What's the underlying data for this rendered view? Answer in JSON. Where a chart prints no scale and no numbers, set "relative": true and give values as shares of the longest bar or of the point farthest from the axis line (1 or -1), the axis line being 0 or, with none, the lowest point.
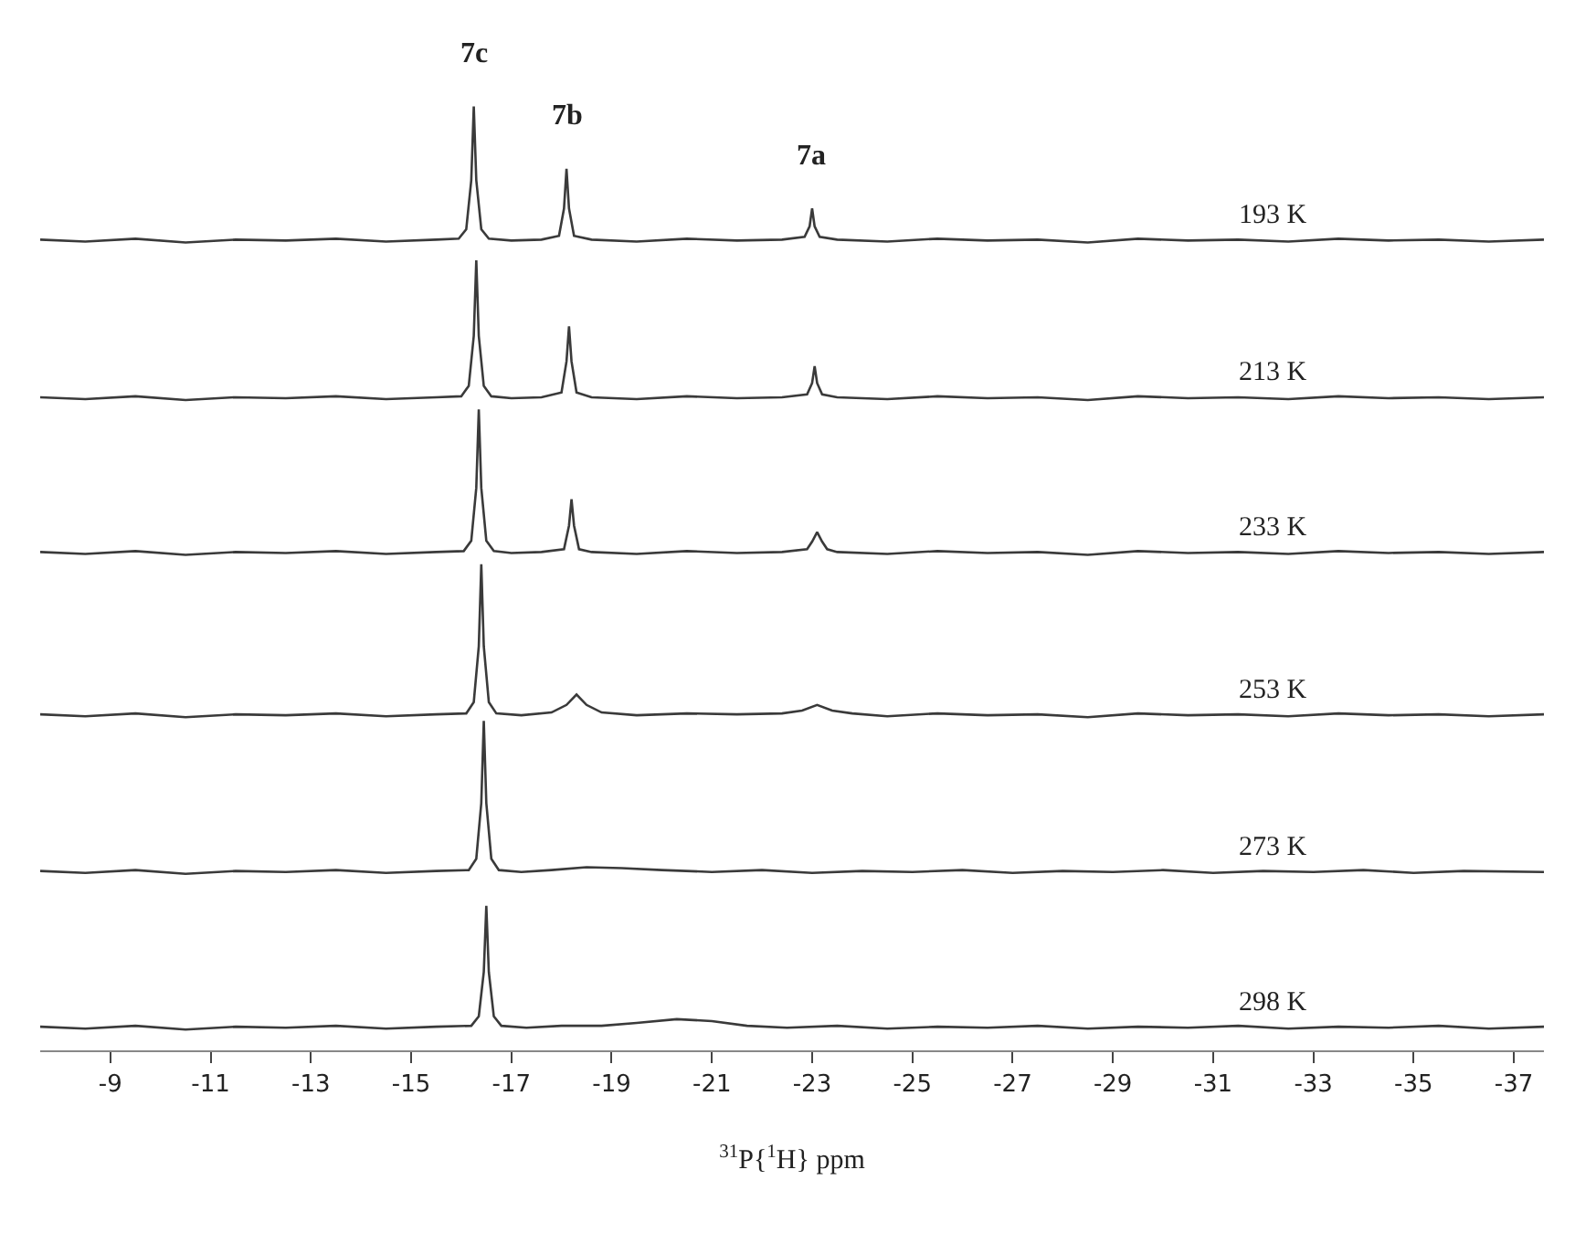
{
  "chart_data": {
    "type": "line",
    "relative": true,
    "xlim": [
      -7.6,
      -37.6
    ],
    "xticks": [
      -9,
      -11,
      -13,
      -15,
      -17,
      -19,
      -21,
      -23,
      -25,
      -27,
      -29,
      -31,
      -33,
      -35,
      -37
    ],
    "xlabel": "$^{31}$P{$^{1}$H} ppm",
    "annotations": [
      "193 K",
      "213 K",
      "233 K",
      "253 K",
      "273 K",
      "298 K",
      {
        "text": "7c",
        "x": -16.25,
        "y": 1.0
      },
      {
        "text": "7b",
        "x": -18.1,
        "y": 0.934
      },
      {
        "text": "7a",
        "x": -23.0,
        "y": 0.892
      }
    ],
    "series": [
      {
        "color": "#3a3a3a",
        "x": [
          -7.6,
          -8.5,
          -9.5,
          -10.5,
          -11.5,
          -12.5,
          -13.5,
          -14.5,
          -15.5,
          -15.95,
          -16.1,
          -16.2,
          -16.25,
          -16.3,
          -16.4,
          -16.55,
          -17.0,
          -17.6,
          -17.95,
          -18.05,
          -18.1,
          -18.15,
          -18.25,
          -18.6,
          -19.5,
          -20.5,
          -21.5,
          -22.4,
          -22.85,
          -22.95,
          -23.0,
          -23.05,
          -23.15,
          -23.5,
          -24.5,
          -25.5,
          -26.5,
          -27.5,
          -28.5,
          -29.5,
          -30.5,
          -31.5,
          -32.5,
          -33.5,
          -34.5,
          -35.5,
          -36.5,
          -37.6
        ],
        "values": [
          0.859,
          0.857,
          0.86,
          0.856,
          0.859,
          0.858,
          0.86,
          0.857,
          0.859,
          0.86,
          0.87,
          0.922,
          1.0,
          0.922,
          0.87,
          0.86,
          0.858,
          0.859,
          0.863,
          0.892,
          0.934,
          0.892,
          0.863,
          0.859,
          0.857,
          0.86,
          0.858,
          0.859,
          0.862,
          0.873,
          0.892,
          0.873,
          0.862,
          0.859,
          0.857,
          0.86,
          0.858,
          0.859,
          0.856,
          0.86,
          0.858,
          0.859,
          0.857,
          0.86,
          0.858,
          0.859,
          0.857,
          0.859
        ]
      },
      {
        "color": "#3a3a3a",
        "x": [
          -7.6,
          -8.5,
          -9.5,
          -10.5,
          -11.5,
          -12.5,
          -13.5,
          -14.5,
          -15.5,
          -16.0,
          -16.15,
          -16.25,
          -16.3,
          -16.35,
          -16.45,
          -16.6,
          -17.0,
          -17.6,
          -18.0,
          -18.1,
          -18.15,
          -18.2,
          -18.3,
          -18.6,
          -19.5,
          -20.5,
          -21.5,
          -22.4,
          -22.9,
          -23.0,
          -23.05,
          -23.1,
          -23.2,
          -23.5,
          -24.5,
          -25.5,
          -26.5,
          -27.5,
          -28.5,
          -29.5,
          -30.5,
          -31.5,
          -32.5,
          -33.5,
          -34.5,
          -35.5,
          -36.5,
          -37.6
        ],
        "values": [
          0.692,
          0.69,
          0.693,
          0.689,
          0.692,
          0.691,
          0.693,
          0.69,
          0.692,
          0.693,
          0.704,
          0.757,
          0.837,
          0.757,
          0.704,
          0.693,
          0.691,
          0.692,
          0.697,
          0.73,
          0.767,
          0.73,
          0.697,
          0.692,
          0.69,
          0.693,
          0.691,
          0.692,
          0.695,
          0.707,
          0.725,
          0.707,
          0.695,
          0.692,
          0.69,
          0.693,
          0.691,
          0.692,
          0.689,
          0.693,
          0.691,
          0.692,
          0.69,
          0.693,
          0.691,
          0.692,
          0.69,
          0.692
        ]
      },
      {
        "color": "#3a3a3a",
        "x": [
          -7.6,
          -8.5,
          -9.5,
          -10.5,
          -11.5,
          -12.5,
          -13.5,
          -14.5,
          -15.5,
          -16.05,
          -16.2,
          -16.3,
          -16.35,
          -16.4,
          -16.5,
          -16.65,
          -17.0,
          -17.6,
          -18.05,
          -18.15,
          -18.2,
          -18.25,
          -18.35,
          -18.6,
          -19.5,
          -20.5,
          -21.5,
          -22.4,
          -22.9,
          -23.0,
          -23.1,
          -23.2,
          -23.3,
          -23.5,
          -24.5,
          -25.5,
          -26.5,
          -27.5,
          -28.5,
          -29.5,
          -30.5,
          -31.5,
          -32.5,
          -33.5,
          -34.5,
          -35.5,
          -36.5,
          -37.6
        ],
        "values": [
          0.528,
          0.526,
          0.529,
          0.525,
          0.528,
          0.527,
          0.529,
          0.526,
          0.528,
          0.529,
          0.54,
          0.596,
          0.679,
          0.596,
          0.54,
          0.529,
          0.527,
          0.528,
          0.531,
          0.556,
          0.584,
          0.556,
          0.531,
          0.528,
          0.526,
          0.529,
          0.527,
          0.528,
          0.531,
          0.539,
          0.549,
          0.539,
          0.531,
          0.528,
          0.526,
          0.529,
          0.527,
          0.528,
          0.525,
          0.529,
          0.527,
          0.528,
          0.526,
          0.529,
          0.527,
          0.528,
          0.526,
          0.528
        ]
      },
      {
        "color": "#3a3a3a",
        "x": [
          -7.6,
          -8.5,
          -9.5,
          -10.5,
          -11.5,
          -12.5,
          -13.5,
          -14.5,
          -15.5,
          -16.1,
          -16.25,
          -16.35,
          -16.4,
          -16.45,
          -16.55,
          -16.7,
          -17.2,
          -17.8,
          -18.1,
          -18.3,
          -18.5,
          -18.8,
          -19.5,
          -20.5,
          -21.5,
          -22.4,
          -22.8,
          -23.1,
          -23.4,
          -23.8,
          -24.5,
          -25.5,
          -26.5,
          -27.5,
          -28.5,
          -29.5,
          -30.5,
          -31.5,
          -32.5,
          -33.5,
          -34.5,
          -35.5,
          -36.5,
          -37.6
        ],
        "values": [
          0.356,
          0.354,
          0.357,
          0.353,
          0.356,
          0.355,
          0.357,
          0.354,
          0.356,
          0.357,
          0.369,
          0.428,
          0.515,
          0.428,
          0.369,
          0.357,
          0.355,
          0.358,
          0.366,
          0.377,
          0.366,
          0.358,
          0.355,
          0.357,
          0.356,
          0.357,
          0.36,
          0.366,
          0.36,
          0.357,
          0.354,
          0.357,
          0.355,
          0.356,
          0.353,
          0.357,
          0.355,
          0.356,
          0.354,
          0.357,
          0.355,
          0.356,
          0.354,
          0.356
        ]
      },
      {
        "color": "#3a3a3a",
        "x": [
          -7.6,
          -8.5,
          -9.5,
          -10.5,
          -11.5,
          -12.5,
          -13.5,
          -14.5,
          -15.5,
          -16.15,
          -16.3,
          -16.4,
          -16.45,
          -16.5,
          -16.6,
          -16.75,
          -17.2,
          -17.8,
          -18.5,
          -19.2,
          -20.0,
          -21.0,
          -22.0,
          -23.0,
          -24.0,
          -25.0,
          -26.0,
          -27.0,
          -28.0,
          -29.0,
          -30.0,
          -31.0,
          -32.0,
          -33.0,
          -34.0,
          -35.0,
          -36.0,
          -37.6
        ],
        "values": [
          0.19,
          0.188,
          0.191,
          0.187,
          0.19,
          0.189,
          0.191,
          0.188,
          0.19,
          0.191,
          0.203,
          0.262,
          0.349,
          0.262,
          0.203,
          0.191,
          0.189,
          0.191,
          0.194,
          0.193,
          0.191,
          0.189,
          0.191,
          0.188,
          0.19,
          0.189,
          0.191,
          0.188,
          0.19,
          0.189,
          0.191,
          0.188,
          0.19,
          0.189,
          0.191,
          0.188,
          0.19,
          0.189
        ]
      },
      {
        "color": "#3a3a3a",
        "x": [
          -7.6,
          -8.5,
          -9.5,
          -10.5,
          -11.5,
          -12.5,
          -13.5,
          -14.5,
          -15.5,
          -16.2,
          -16.35,
          -16.45,
          -16.5,
          -16.55,
          -16.65,
          -16.8,
          -17.3,
          -18.0,
          -18.8,
          -19.5,
          -20.3,
          -21.0,
          -21.7,
          -22.5,
          -23.5,
          -24.5,
          -25.5,
          -26.5,
          -27.5,
          -28.5,
          -29.5,
          -30.5,
          -31.5,
          -32.5,
          -33.5,
          -34.5,
          -35.5,
          -36.5,
          -37.6
        ],
        "values": [
          0.025,
          0.023,
          0.026,
          0.022,
          0.025,
          0.024,
          0.026,
          0.023,
          0.025,
          0.026,
          0.036,
          0.083,
          0.153,
          0.083,
          0.036,
          0.026,
          0.024,
          0.026,
          0.026,
          0.029,
          0.033,
          0.031,
          0.026,
          0.024,
          0.026,
          0.023,
          0.025,
          0.024,
          0.026,
          0.023,
          0.025,
          0.024,
          0.026,
          0.023,
          0.025,
          0.024,
          0.026,
          0.023,
          0.025
        ]
      }
    ]
  }
}
